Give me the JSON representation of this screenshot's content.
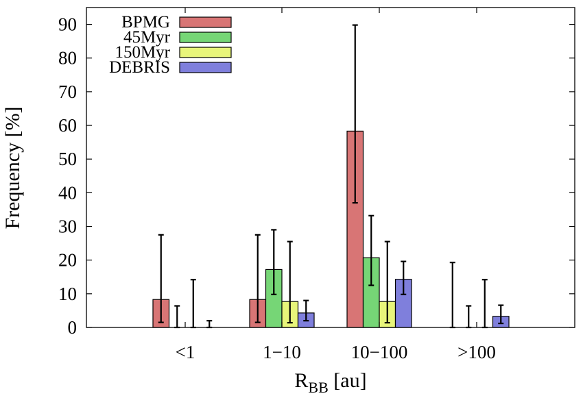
{
  "chart_data": {
    "type": "bar",
    "title": "",
    "xlabel": "R",
    "xlabel_subscript": "BB",
    "xlabel_unit": " [au]",
    "ylabel": "Frequency [%]",
    "ylim": [
      0,
      95
    ],
    "yticks": [
      "0",
      "10",
      "20",
      "30",
      "40",
      "50",
      "60",
      "70",
      "80",
      "90"
    ],
    "categories": [
      "<1",
      "1−10",
      "10−100",
      ">100"
    ],
    "grid": false,
    "legend_position": "top-left",
    "error_bars": true,
    "series": [
      {
        "name": "BPMG",
        "color": "#d87575",
        "values": [
          8.3,
          8.3,
          58.3,
          0
        ],
        "err_low": [
          1.5,
          1.5,
          37.0,
          0
        ],
        "err_high": [
          27.5,
          27.5,
          89.8,
          19.3
        ]
      },
      {
        "name": "45Myr",
        "color": "#76d676",
        "values": [
          0,
          17.2,
          20.7,
          0
        ],
        "err_low": [
          0,
          9.8,
          12.5,
          0
        ],
        "err_high": [
          6.4,
          29.0,
          33.2,
          6.4
        ]
      },
      {
        "name": "150Myr",
        "color": "#e8f57a",
        "values": [
          0,
          7.7,
          7.7,
          0
        ],
        "err_low": [
          0,
          1.4,
          1.4,
          0
        ],
        "err_high": [
          14.2,
          25.5,
          25.5,
          14.2
        ]
      },
      {
        "name": "DEBRIS",
        "color": "#7f7fdc",
        "values": [
          0,
          4.3,
          14.3,
          3.3
        ],
        "err_low": [
          0,
          2.0,
          9.8,
          1.2
        ],
        "err_high": [
          2.0,
          8.0,
          19.6,
          6.6
        ]
      }
    ]
  }
}
